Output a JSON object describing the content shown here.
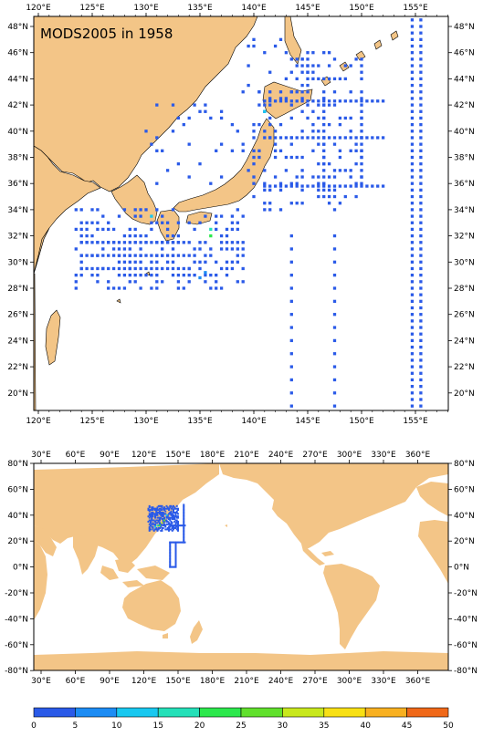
{
  "title": "MODS2005 in 1958",
  "colors": {
    "land": "#f3c587",
    "ocean": "#ffffff",
    "frame": "#000000"
  },
  "map1": {
    "name": "regional-map",
    "lon_ticks": [
      "120°E",
      "125°E",
      "130°E",
      "135°E",
      "140°E",
      "145°E",
      "150°E",
      "155°E"
    ],
    "lat_ticks": [
      "48°N",
      "46°N",
      "44°N",
      "42°N",
      "40°N",
      "38°N",
      "36°N",
      "34°N",
      "32°N",
      "30°N",
      "28°N",
      "26°N",
      "24°N",
      "22°N",
      "20°N"
    ],
    "lon_range": [
      119,
      158
    ],
    "lat_range": [
      18.5,
      49.5
    ]
  },
  "map2": {
    "name": "global-map",
    "lon_ticks": [
      "30°E",
      "60°E",
      "90°E",
      "120°E",
      "150°E",
      "180°E",
      "210°E",
      "240°E",
      "270°E",
      "300°E",
      "330°E",
      "360°E"
    ],
    "lat_ticks": [
      "80°N",
      "60°N",
      "40°N",
      "20°N",
      "0°N",
      "-20°N",
      "-40°N",
      "-60°N",
      "-80°N"
    ]
  },
  "colorbar": {
    "labels": [
      "0",
      "5",
      "10",
      "15",
      "20",
      "25",
      "30",
      "35",
      "40",
      "45",
      "50"
    ],
    "colors": [
      "#2a5ae8",
      "#1c8cf4",
      "#18c8f0",
      "#24e0b8",
      "#2ce84c",
      "#60e02c",
      "#c8e81c",
      "#f8e014",
      "#f8b020",
      "#f06818"
    ]
  }
}
